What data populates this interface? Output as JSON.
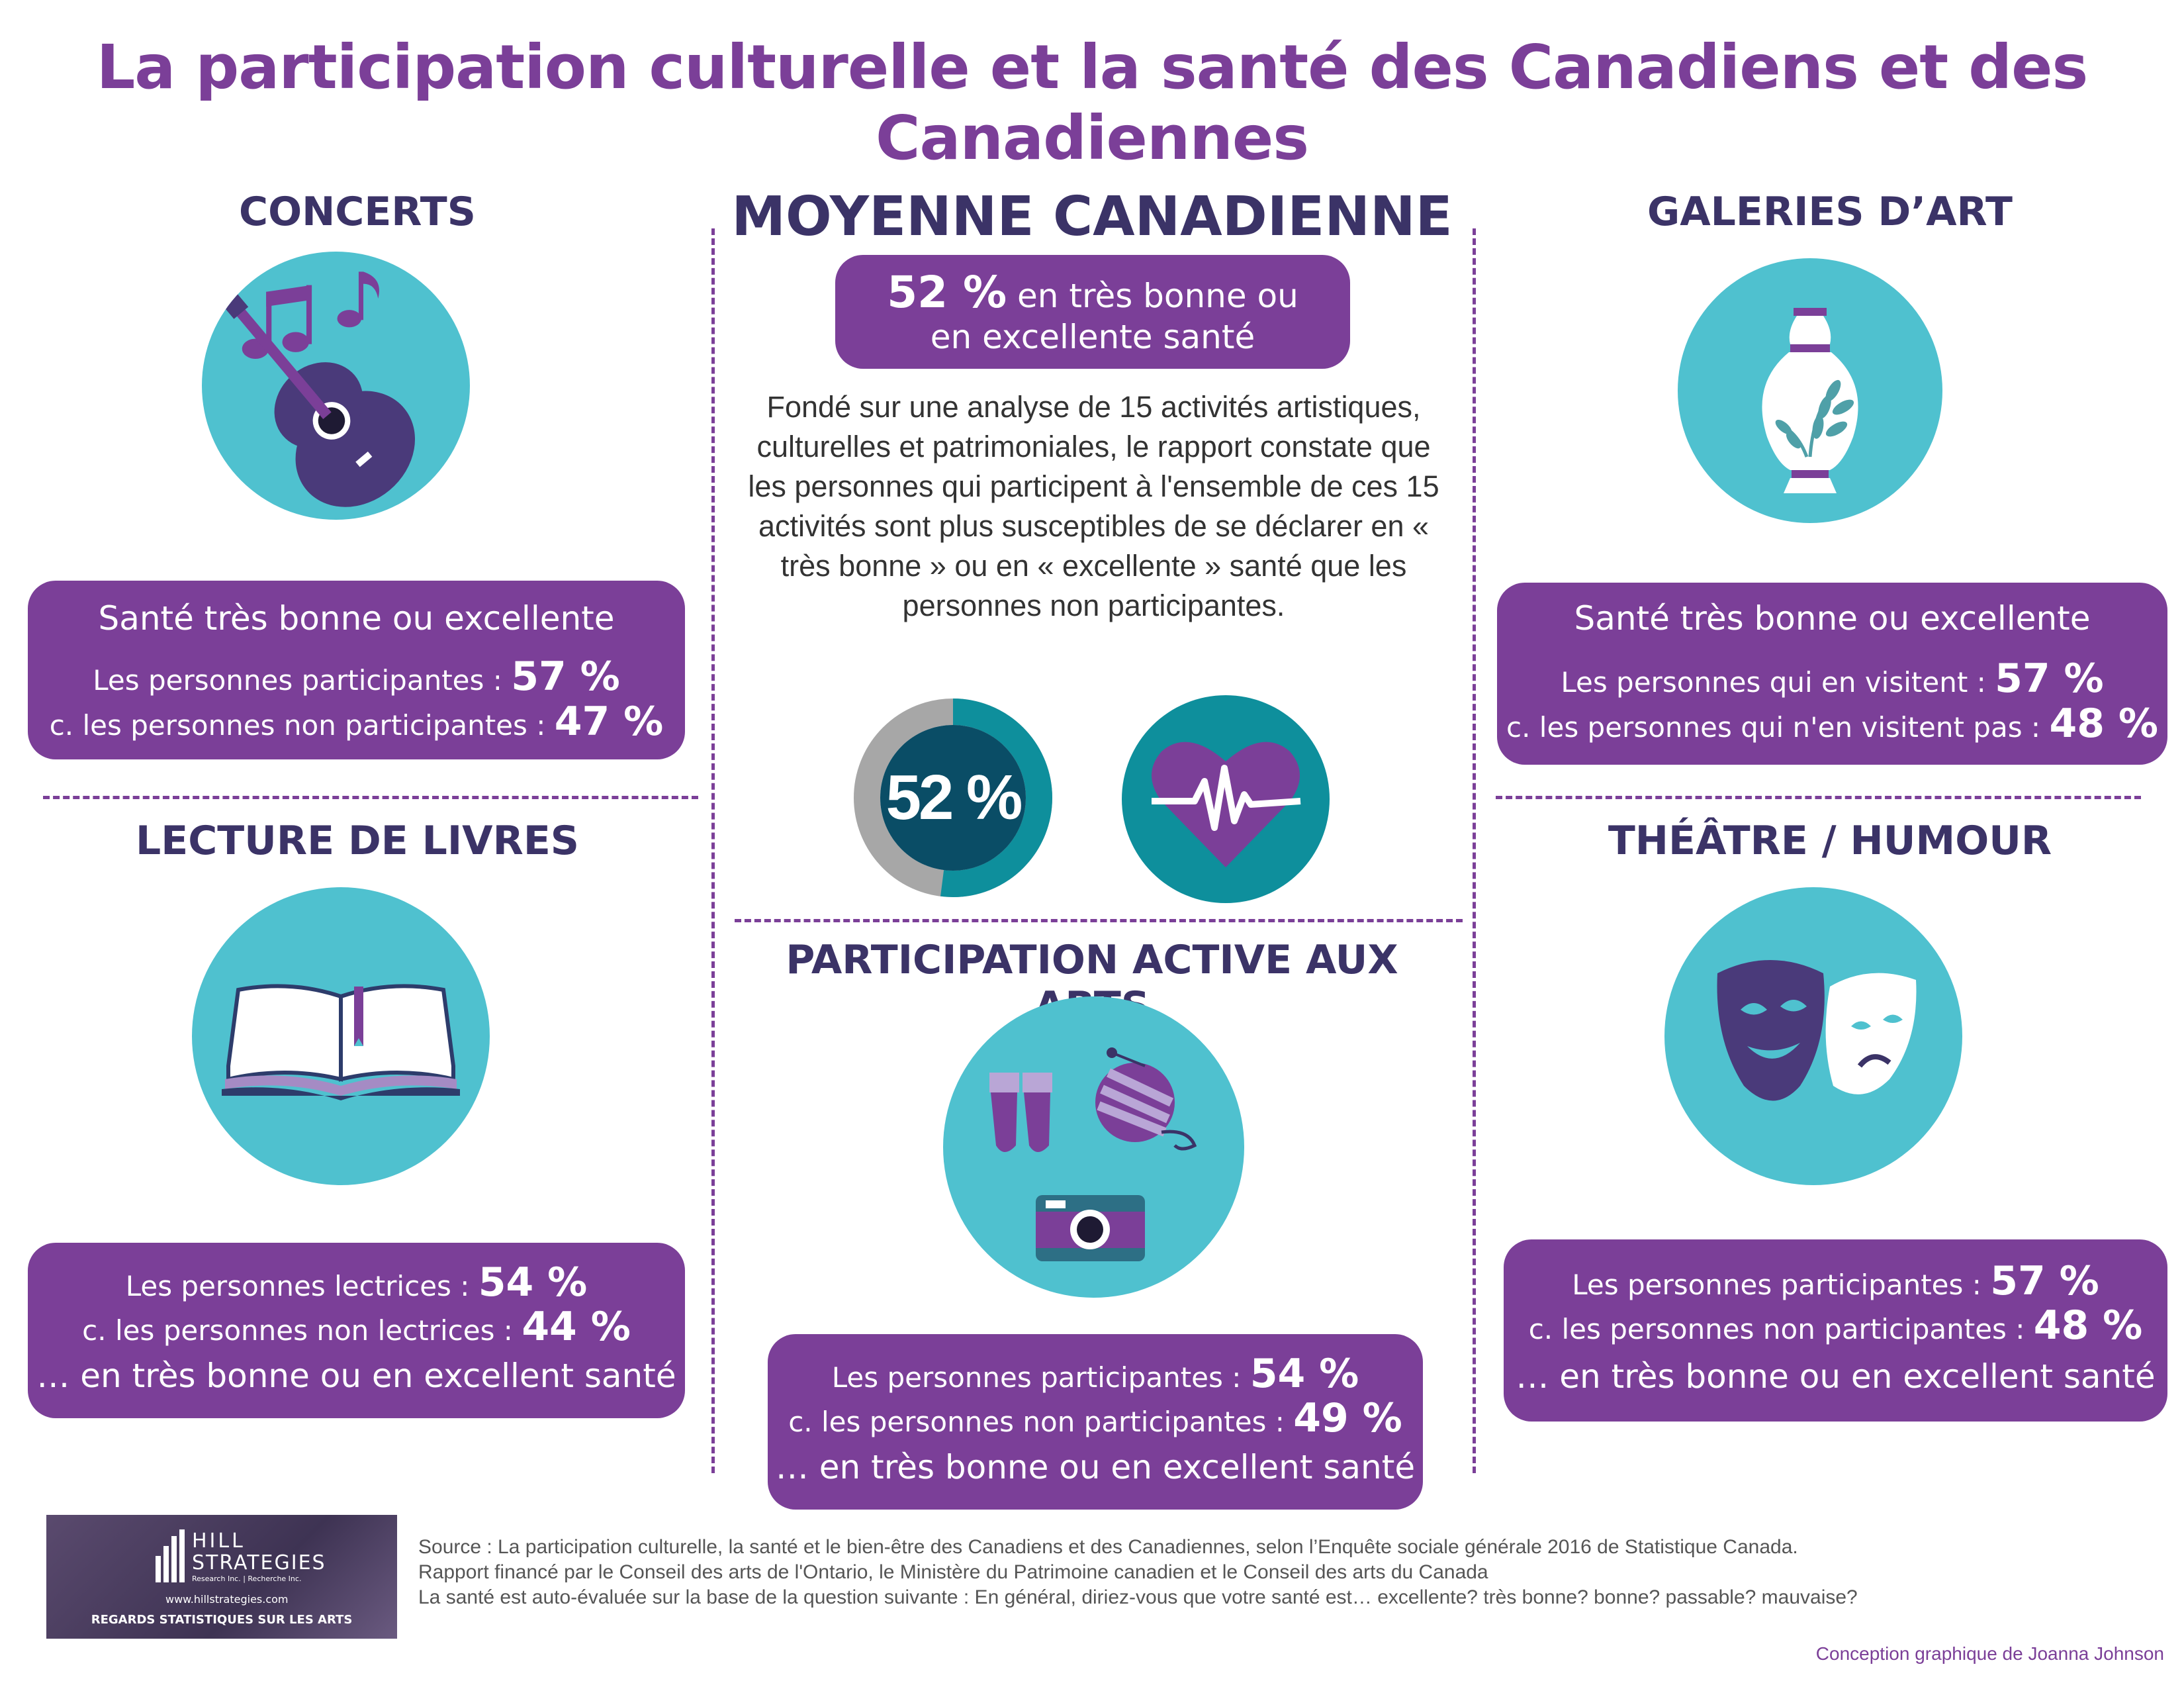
{
  "title": "La participation culturelle et la santé des Canadiens et des Canadiennes",
  "concerts": {
    "title": "CONCERTS",
    "heading": "Santé très bonne ou excellente",
    "participants_label": "Les personnes participantes :",
    "participants_value": "57 %",
    "non_label": "c. les personnes non participantes :",
    "non_value": "47 %"
  },
  "galeries": {
    "title": "GALERIES D’ART",
    "heading": "Santé très bonne ou excellente",
    "participants_label": "Les personnes qui en visitent :",
    "participants_value": "57 %",
    "non_label": "c. les personnes qui n'en visitent pas :",
    "non_value": "48 %"
  },
  "lecture": {
    "title": "LECTURE DE LIVRES",
    "participants_label": "Les personnes lectrices :",
    "participants_value": "54 %",
    "non_label": "c. les personnes non lectrices :",
    "non_value": "44 %",
    "footer": "… en très bonne ou en excellent santé"
  },
  "theatre": {
    "title": "THÉÂTRE / HUMOUR",
    "participants_label": "Les personnes participantes :",
    "participants_value": "57 %",
    "non_label": "c. les personnes non participantes :",
    "non_value": "48 %",
    "footer": "… en très bonne ou en excellent santé"
  },
  "moyenne": {
    "title": "MOYENNE CANADIENNE",
    "pill_value": "52 %",
    "pill_text1": "en très bonne ou",
    "pill_text2": "en excellente santé",
    "body": "Fondé sur une analyse de 15 activités artistiques, culturelles et patrimoniales, le rapport constate que les personnes qui participent à l'ensemble de ces 15 activités sont plus susceptibles de se déclarer en « très bonne » ou en « excellente » santé que les personnes non participantes.",
    "donut_label": "52 %",
    "donut_fraction": 0.52
  },
  "active": {
    "title": "PARTICIPATION ACTIVE AUX ARTS",
    "participants_label": "Les personnes participantes :",
    "participants_value": "54 %",
    "non_label": "c. les personnes non participantes :",
    "non_value": "49 %",
    "footer": "… en très bonne ou en excellent santé"
  },
  "logo": {
    "brand1": "HILL",
    "brand2": "STRATEGIES",
    "sub": "Research Inc. | Recherche Inc.",
    "url": "www.hillstrategies.com",
    "tagline": "REGARDS STATISTIQUES SUR LES ARTS"
  },
  "footer": {
    "line1": "Source : La participation culturelle, la santé et le bien-être des Canadiens et des Canadiennes, selon l’Enquête sociale générale 2016 de Statistique Canada.",
    "line2": "Rapport financé par le Conseil des arts de l'Ontario, le Ministère du Patrimoine canadien et le Conseil des arts du Canada",
    "line3": "La santé est auto-évaluée sur la base de la question suivante : En général, diriez-vous que votre santé est… excellente? très bonne? bonne? passable? mauvaise?",
    "credit": "Conception graphique de Joanna Johnson"
  },
  "colors": {
    "purple": "#7b3f98",
    "navy": "#3b3367",
    "teal": "#4fc1cf",
    "dark_teal": "#0e8f9c"
  }
}
